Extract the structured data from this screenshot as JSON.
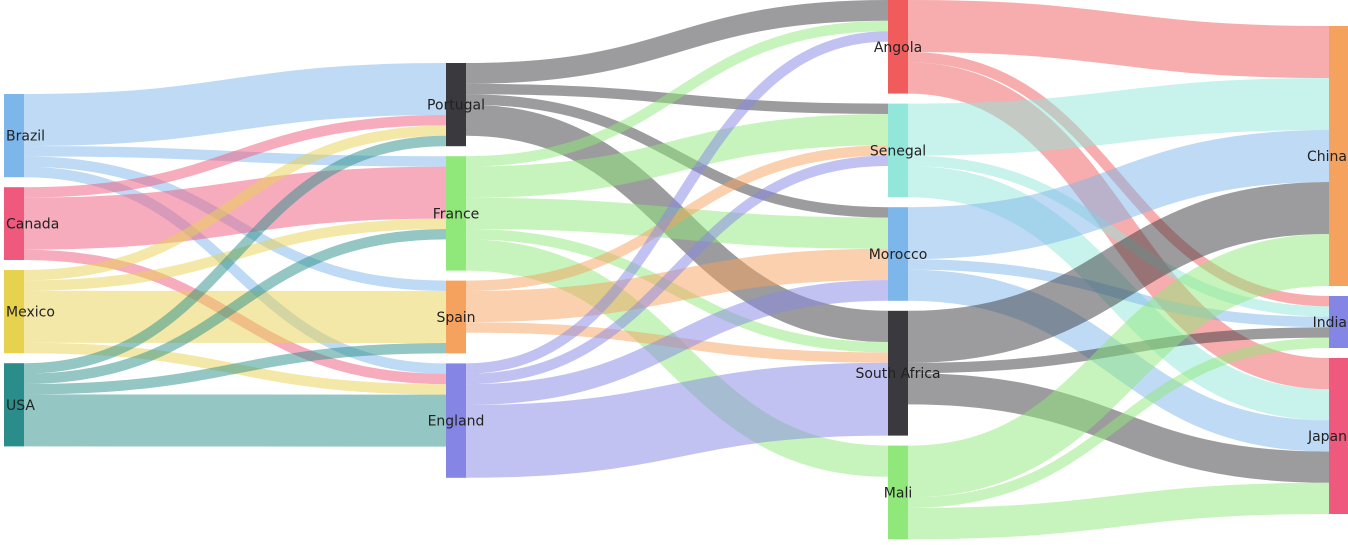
{
  "chart_data": {
    "type": "sankey",
    "columns": [
      [
        "Brazil",
        "Canada",
        "Mexico",
        "USA"
      ],
      [
        "Portugal",
        "France",
        "Spain",
        "England"
      ],
      [
        "Angola",
        "Senegal",
        "Morocco",
        "South Africa",
        "Mali"
      ],
      [
        "China",
        "India",
        "Japan"
      ]
    ],
    "nodes": [
      {
        "name": "Brazil",
        "color": "#7db6ea"
      },
      {
        "name": "Canada",
        "color": "#f0597e"
      },
      {
        "name": "Mexico",
        "color": "#e7d250"
      },
      {
        "name": "USA",
        "color": "#2a8d8a"
      },
      {
        "name": "Portugal",
        "color": "#3a3a3e"
      },
      {
        "name": "France",
        "color": "#90e87a"
      },
      {
        "name": "Spain",
        "color": "#f5a25e"
      },
      {
        "name": "England",
        "color": "#8585e6"
      },
      {
        "name": "Angola",
        "color": "#f05c5c"
      },
      {
        "name": "Senegal",
        "color": "#92e6da"
      },
      {
        "name": "Morocco",
        "color": "#7db6ea"
      },
      {
        "name": "South Africa",
        "color": "#3a3a3e"
      },
      {
        "name": "Mali",
        "color": "#90e87a"
      },
      {
        "name": "China",
        "color": "#f5a25e"
      },
      {
        "name": "India",
        "color": "#8585e6"
      },
      {
        "name": "Japan",
        "color": "#f0597e"
      }
    ],
    "links": [
      {
        "source": "Brazil",
        "target": "Portugal",
        "value": 5
      },
      {
        "source": "Brazil",
        "target": "France",
        "value": 1
      },
      {
        "source": "Brazil",
        "target": "Spain",
        "value": 1
      },
      {
        "source": "Brazil",
        "target": "England",
        "value": 1
      },
      {
        "source": "Canada",
        "target": "Portugal",
        "value": 1
      },
      {
        "source": "Canada",
        "target": "France",
        "value": 5
      },
      {
        "source": "Canada",
        "target": "England",
        "value": 1
      },
      {
        "source": "Mexico",
        "target": "Portugal",
        "value": 1
      },
      {
        "source": "Mexico",
        "target": "France",
        "value": 1
      },
      {
        "source": "Mexico",
        "target": "Spain",
        "value": 5
      },
      {
        "source": "Mexico",
        "target": "England",
        "value": 1
      },
      {
        "source": "USA",
        "target": "Portugal",
        "value": 1
      },
      {
        "source": "USA",
        "target": "France",
        "value": 1
      },
      {
        "source": "USA",
        "target": "Spain",
        "value": 1
      },
      {
        "source": "USA",
        "target": "England",
        "value": 5
      },
      {
        "source": "Portugal",
        "target": "Angola",
        "value": 2
      },
      {
        "source": "Portugal",
        "target": "Senegal",
        "value": 1
      },
      {
        "source": "Portugal",
        "target": "Morocco",
        "value": 1
      },
      {
        "source": "Portugal",
        "target": "South Africa",
        "value": 3
      },
      {
        "source": "France",
        "target": "Angola",
        "value": 1
      },
      {
        "source": "France",
        "target": "Senegal",
        "value": 3
      },
      {
        "source": "France",
        "target": "Morocco",
        "value": 3
      },
      {
        "source": "France",
        "target": "South Africa",
        "value": 1
      },
      {
        "source": "France",
        "target": "Mali",
        "value": 3
      },
      {
        "source": "Spain",
        "target": "Senegal",
        "value": 1
      },
      {
        "source": "Spain",
        "target": "Morocco",
        "value": 3
      },
      {
        "source": "Spain",
        "target": "South Africa",
        "value": 1
      },
      {
        "source": "England",
        "target": "Angola",
        "value": 1
      },
      {
        "source": "England",
        "target": "Senegal",
        "value": 1
      },
      {
        "source": "England",
        "target": "Morocco",
        "value": 2
      },
      {
        "source": "England",
        "target": "South Africa",
        "value": 7
      },
      {
        "source": "Angola",
        "target": "China",
        "value": 5
      },
      {
        "source": "Angola",
        "target": "India",
        "value": 1
      },
      {
        "source": "Angola",
        "target": "Japan",
        "value": 3
      },
      {
        "source": "Senegal",
        "target": "China",
        "value": 5
      },
      {
        "source": "Senegal",
        "target": "India",
        "value": 1
      },
      {
        "source": "Senegal",
        "target": "Japan",
        "value": 3
      },
      {
        "source": "Morocco",
        "target": "China",
        "value": 5
      },
      {
        "source": "Morocco",
        "target": "India",
        "value": 1
      },
      {
        "source": "Morocco",
        "target": "Japan",
        "value": 3
      },
      {
        "source": "South Africa",
        "target": "China",
        "value": 5
      },
      {
        "source": "South Africa",
        "target": "India",
        "value": 1
      },
      {
        "source": "South Africa",
        "target": "Japan",
        "value": 3
      },
      {
        "source": "Mali",
        "target": "China",
        "value": 5
      },
      {
        "source": "Mali",
        "target": "India",
        "value": 1
      },
      {
        "source": "Mali",
        "target": "Japan",
        "value": 3
      }
    ]
  }
}
